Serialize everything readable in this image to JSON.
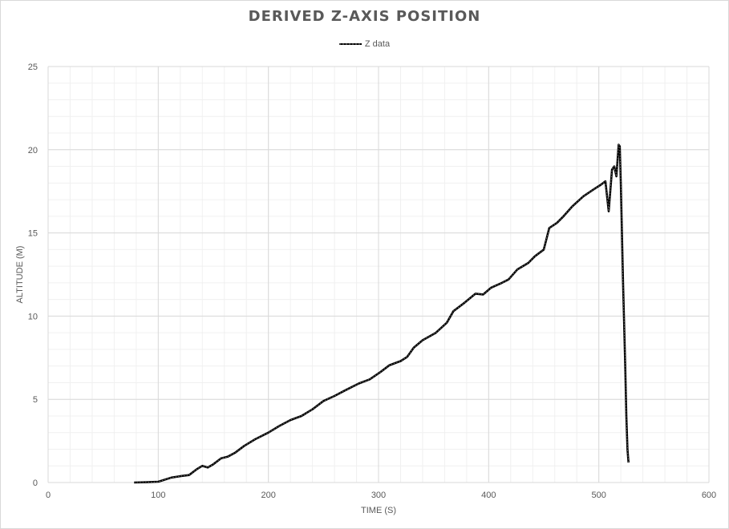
{
  "chart_data": {
    "type": "line",
    "title": "DERIVED Z-AXIS POSITION",
    "xlabel": "TIME (S)",
    "ylabel": "ALTITUDE (M)",
    "xlim": [
      0,
      600
    ],
    "ylim": [
      0,
      25
    ],
    "x_ticks": [
      0,
      100,
      200,
      300,
      400,
      500,
      600
    ],
    "y_ticks": [
      0,
      5,
      10,
      15,
      20,
      25
    ],
    "grid": true,
    "minor_grid": true,
    "legend_position": "top-center",
    "series": [
      {
        "name": "Z data",
        "color": "#000000",
        "points": [
          [
            78,
            0.0
          ],
          [
            90,
            0.02
          ],
          [
            100,
            0.05
          ],
          [
            105,
            0.15
          ],
          [
            112,
            0.3
          ],
          [
            120,
            0.38
          ],
          [
            128,
            0.45
          ],
          [
            135,
            0.8
          ],
          [
            140,
            1.0
          ],
          [
            145,
            0.9
          ],
          [
            150,
            1.1
          ],
          [
            157,
            1.45
          ],
          [
            163,
            1.55
          ],
          [
            170,
            1.8
          ],
          [
            178,
            2.2
          ],
          [
            188,
            2.6
          ],
          [
            200,
            3.0
          ],
          [
            210,
            3.4
          ],
          [
            220,
            3.75
          ],
          [
            230,
            4.0
          ],
          [
            240,
            4.4
          ],
          [
            250,
            4.9
          ],
          [
            260,
            5.2
          ],
          [
            270,
            5.55
          ],
          [
            282,
            5.95
          ],
          [
            292,
            6.2
          ],
          [
            302,
            6.65
          ],
          [
            310,
            7.05
          ],
          [
            320,
            7.3
          ],
          [
            326,
            7.55
          ],
          [
            332,
            8.1
          ],
          [
            340,
            8.55
          ],
          [
            352,
            9.0
          ],
          [
            362,
            9.6
          ],
          [
            368,
            10.3
          ],
          [
            378,
            10.8
          ],
          [
            388,
            11.35
          ],
          [
            395,
            11.3
          ],
          [
            402,
            11.7
          ],
          [
            412,
            12.0
          ],
          [
            418,
            12.2
          ],
          [
            426,
            12.8
          ],
          [
            436,
            13.2
          ],
          [
            442,
            13.6
          ],
          [
            450,
            14.0
          ],
          [
            455,
            15.3
          ],
          [
            462,
            15.6
          ],
          [
            468,
            16.0
          ],
          [
            476,
            16.6
          ],
          [
            486,
            17.2
          ],
          [
            495,
            17.6
          ],
          [
            502,
            17.9
          ],
          [
            506,
            18.1
          ],
          [
            509,
            16.3
          ],
          [
            512,
            18.8
          ],
          [
            514,
            19.0
          ],
          [
            516,
            18.4
          ],
          [
            518,
            20.3
          ],
          [
            519,
            20.2
          ],
          [
            520,
            18.0
          ],
          [
            522,
            12.0
          ],
          [
            524,
            7.0
          ],
          [
            525,
            4.0
          ],
          [
            526,
            2.0
          ],
          [
            527,
            1.2
          ]
        ]
      }
    ]
  }
}
